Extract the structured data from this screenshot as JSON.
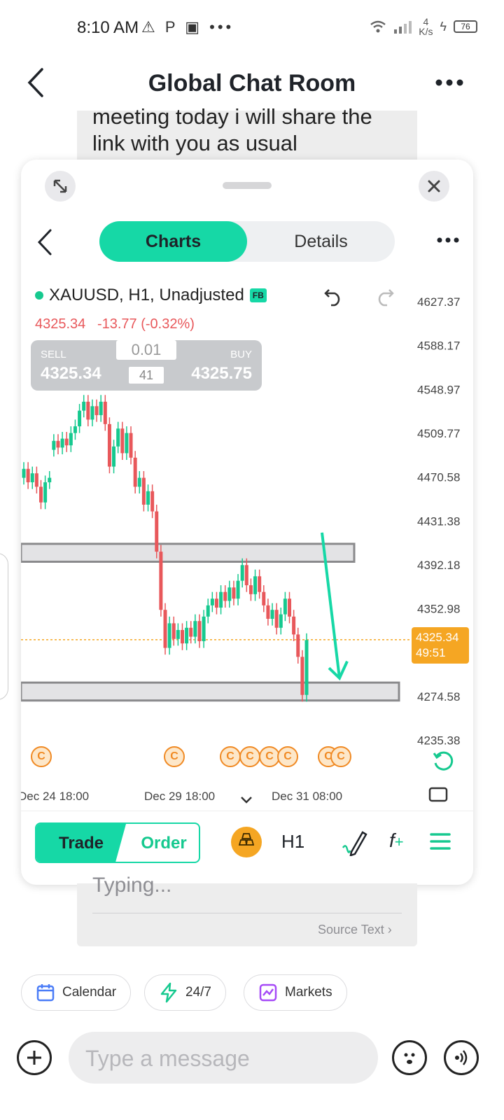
{
  "status_bar": {
    "time": "8:10 AM",
    "left_icons": "⚠ P ▣ •••",
    "net_speed_top": "4",
    "net_speed_bottom": "K/s",
    "battery": "76"
  },
  "header": {
    "title": "Global Chat Room"
  },
  "chat": {
    "message_line1": "meeting today i will share the",
    "message_line2": "link with you as usual",
    "input_preview": "Typing...",
    "source_text": "Source Text"
  },
  "chart_modal": {
    "tabs": [
      {
        "label": "Charts",
        "active": true
      },
      {
        "label": "Details",
        "active": false
      }
    ],
    "symbol": "XAUUSD, H1, Unadjusted",
    "symbol_badge": "FB",
    "last_price": "4325.34",
    "change": "-13.77 (-0.32%)",
    "trade_panel": {
      "sell_label": "SELL",
      "sell_price": "4325.34",
      "buy_label": "BUY",
      "buy_price": "4325.75",
      "lot": "0.01",
      "spread": "41"
    },
    "current_price_tag": {
      "price": "4325.34",
      "countdown": "49:51"
    },
    "event_marker": "C",
    "bottom_bar": {
      "trade_label": "Trade",
      "order_label": "Order",
      "timeframe": "H1"
    }
  },
  "chart_data": {
    "type": "candlestick",
    "title": "",
    "symbol": "XAUUSD",
    "timeframe": "H1",
    "y_ticks": [
      "4627.37",
      "4588.17",
      "4548.97",
      "4509.77",
      "4470.58",
      "4431.38",
      "4392.18",
      "4352.98",
      "4274.58",
      "4235.38"
    ],
    "x_ticks": [
      "Dec 24 18:00",
      "Dec 29 18:00",
      "Dec 31 08:00"
    ],
    "ylim": [
      4235.38,
      4627.37
    ],
    "current_price": 4325.34,
    "zones": [
      {
        "low": 4395,
        "high": 4411
      },
      {
        "low": 4271,
        "high": 4287
      }
    ],
    "annotation": "downward arrow from upper zone toward lower zone",
    "colors": {
      "up": "#16c98f",
      "down": "#e8585b"
    },
    "candles": [
      {
        "o": 4470,
        "c": 4478
      },
      {
        "o": 4478,
        "c": 4466
      },
      {
        "o": 4466,
        "c": 4474
      },
      {
        "o": 4474,
        "c": 4462
      },
      {
        "o": 4462,
        "c": 4448
      },
      {
        "o": 4448,
        "c": 4466
      },
      {
        "o": 4466,
        "c": 4470
      },
      {
        "o": 4495,
        "c": 4503
      },
      {
        "o": 4503,
        "c": 4497
      },
      {
        "o": 4497,
        "c": 4505
      },
      {
        "o": 4505,
        "c": 4499
      },
      {
        "o": 4499,
        "c": 4510
      },
      {
        "o": 4510,
        "c": 4516
      },
      {
        "o": 4516,
        "c": 4530
      },
      {
        "o": 4530,
        "c": 4538
      },
      {
        "o": 4538,
        "c": 4522
      },
      {
        "o": 4522,
        "c": 4534
      },
      {
        "o": 4534,
        "c": 4526
      },
      {
        "o": 4526,
        "c": 4538
      },
      {
        "o": 4538,
        "c": 4518
      },
      {
        "o": 4518,
        "c": 4480
      },
      {
        "o": 4480,
        "c": 4498
      },
      {
        "o": 4498,
        "c": 4514
      },
      {
        "o": 4514,
        "c": 4492
      },
      {
        "o": 4492,
        "c": 4510
      },
      {
        "o": 4510,
        "c": 4488
      },
      {
        "o": 4488,
        "c": 4462
      },
      {
        "o": 4462,
        "c": 4470
      },
      {
        "o": 4470,
        "c": 4446
      },
      {
        "o": 4446,
        "c": 4458
      },
      {
        "o": 4458,
        "c": 4440
      },
      {
        "o": 4440,
        "c": 4404
      },
      {
        "o": 4404,
        "c": 4352
      },
      {
        "o": 4352,
        "c": 4318
      },
      {
        "o": 4318,
        "c": 4340
      },
      {
        "o": 4340,
        "c": 4326
      },
      {
        "o": 4326,
        "c": 4334
      },
      {
        "o": 4334,
        "c": 4322
      },
      {
        "o": 4322,
        "c": 4336
      },
      {
        "o": 4336,
        "c": 4328
      },
      {
        "o": 4328,
        "c": 4342
      },
      {
        "o": 4342,
        "c": 4324
      },
      {
        "o": 4324,
        "c": 4346
      },
      {
        "o": 4346,
        "c": 4356
      },
      {
        "o": 4356,
        "c": 4362
      },
      {
        "o": 4362,
        "c": 4354
      },
      {
        "o": 4354,
        "c": 4368
      },
      {
        "o": 4368,
        "c": 4360
      },
      {
        "o": 4360,
        "c": 4372
      },
      {
        "o": 4372,
        "c": 4362
      },
      {
        "o": 4362,
        "c": 4378
      },
      {
        "o": 4378,
        "c": 4392
      },
      {
        "o": 4392,
        "c": 4374
      },
      {
        "o": 4374,
        "c": 4366
      },
      {
        "o": 4366,
        "c": 4382
      },
      {
        "o": 4382,
        "c": 4368
      },
      {
        "o": 4368,
        "c": 4356
      },
      {
        "o": 4356,
        "c": 4344
      },
      {
        "o": 4344,
        "c": 4352
      },
      {
        "o": 4352,
        "c": 4336
      },
      {
        "o": 4336,
        "c": 4348
      },
      {
        "o": 4348,
        "c": 4362
      },
      {
        "o": 4362,
        "c": 4346
      },
      {
        "o": 4346,
        "c": 4330
      },
      {
        "o": 4330,
        "c": 4310
      },
      {
        "o": 4310,
        "c": 4276
      },
      {
        "o": 4276,
        "c": 4325
      }
    ]
  },
  "shortcuts": [
    {
      "label": "Calendar",
      "icon": "calendar-icon",
      "color": "#4a7cf7"
    },
    {
      "label": "24/7",
      "icon": "lightning-icon",
      "color": "#16c98f"
    },
    {
      "label": "Markets",
      "icon": "markets-icon",
      "color": "#a64af7"
    }
  ],
  "composer": {
    "placeholder": "Type a message"
  }
}
